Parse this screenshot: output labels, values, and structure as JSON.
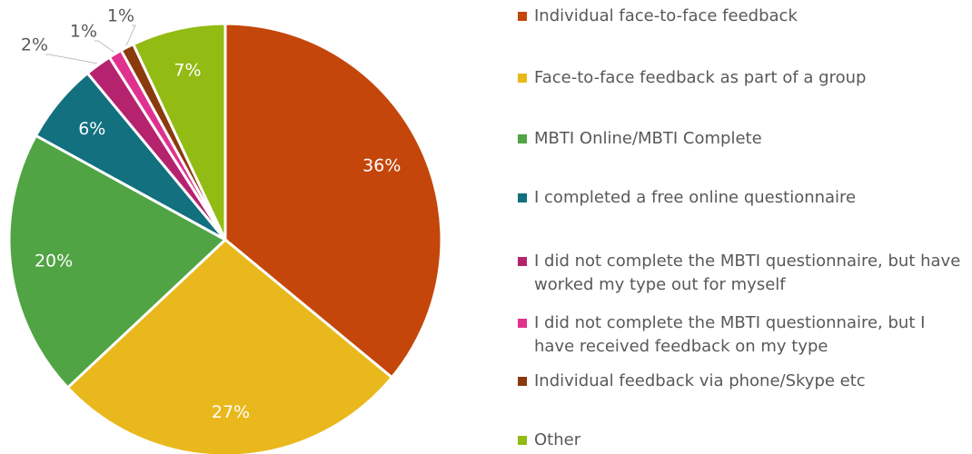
{
  "chart_data": {
    "type": "pie",
    "categories": [
      "Individual face-to-face feedback",
      "Face-to-face feedback as part of a group",
      "MBTI Online/MBTI Complete",
      "I completed a free online questionnaire",
      "I did not complete the MBTI questionnaire, but have worked my type out for myself",
      "I did not complete the MBTI questionnaire, but I have received feedback on my type",
      "Individual feedback via phone/Skype etc",
      "Other"
    ],
    "values": [
      36,
      27,
      20,
      6,
      2,
      1,
      1,
      7
    ],
    "value_labels": [
      "36%",
      "27%",
      "20%",
      "6%",
      "2%",
      "1%",
      "1%",
      "7%"
    ],
    "colors": [
      "#c4460a",
      "#e9b81c",
      "#50a443",
      "#12707f",
      "#b5236e",
      "#e0318f",
      "#8a3a0d",
      "#92bb14"
    ],
    "legend": "right"
  }
}
